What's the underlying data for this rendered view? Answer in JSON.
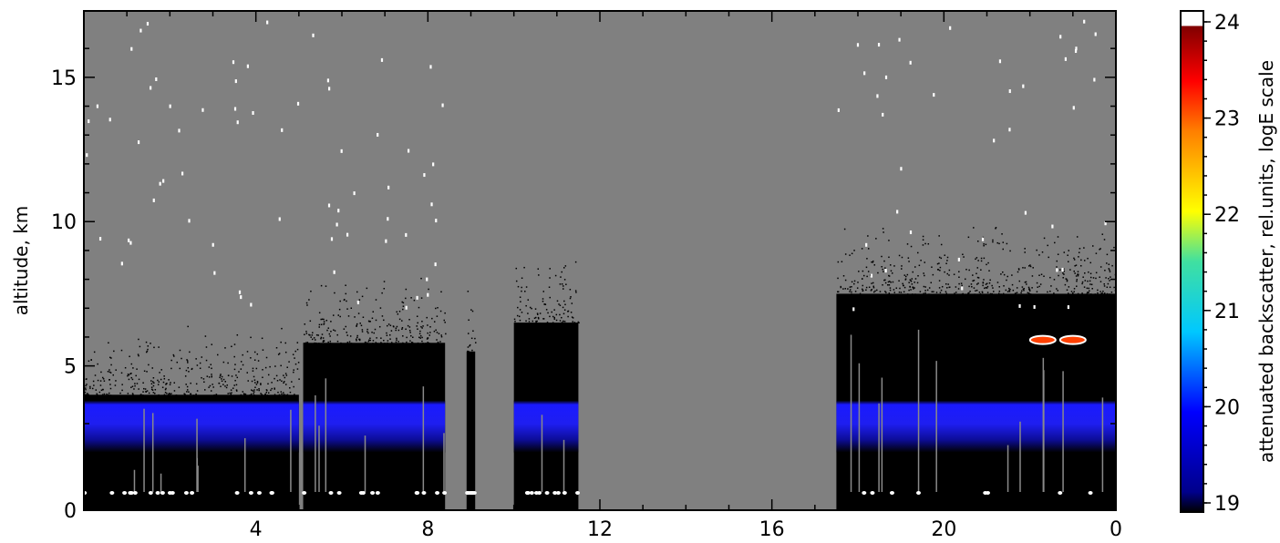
{
  "chart_data": {
    "type": "heatmap",
    "title": "",
    "xlabel": "",
    "ylabel": "altitude, km",
    "x_ticks": [
      "4",
      "8",
      "12",
      "16",
      "20",
      "0"
    ],
    "y_ticks": [
      "0",
      "5",
      "10",
      "15"
    ],
    "xlim_hours": [
      0,
      24
    ],
    "ylim_km": [
      0,
      17.3
    ],
    "background_color": "#808080",
    "colorbar": {
      "label": "attenuated backscatter, rel.units, logE scale",
      "range": [
        19,
        24
      ],
      "ticks": [
        "19",
        "20",
        "21",
        "22",
        "23",
        "24"
      ],
      "colormap": [
        "#000000",
        "#0000ff",
        "#00ffff",
        "#ffff00",
        "#ff0000",
        "#800000",
        "#ffffff"
      ]
    },
    "data_segments": [
      {
        "start_hour": 0.0,
        "end_hour": 5.0,
        "top_km": 4.0
      },
      {
        "start_hour": 5.1,
        "end_hour": 8.4,
        "top_km": 5.8
      },
      {
        "start_hour": 8.9,
        "end_hour": 9.1,
        "top_km": 5.5
      },
      {
        "start_hour": 10.0,
        "end_hour": 11.5,
        "top_km": 6.5
      },
      {
        "start_hour": 17.5,
        "end_hour": 24.0,
        "top_km": 7.5
      }
    ],
    "no_data_gaps": [
      {
        "start_hour": 8.4,
        "end_hour": 8.9
      },
      {
        "start_hour": 9.1,
        "end_hour": 10.0
      },
      {
        "start_hour": 11.5,
        "end_hour": 17.5
      }
    ],
    "aerosol_layer": {
      "bottom_km": 2.0,
      "top_km": 3.8,
      "value": 20
    },
    "cloud_patches": [
      {
        "hour": 22.3,
        "altitude_km": 5.9,
        "value": 23
      },
      {
        "hour": 23.0,
        "altitude_km": 5.9,
        "value": 23.5
      }
    ],
    "grid": false,
    "legend": "colorbar-right"
  }
}
